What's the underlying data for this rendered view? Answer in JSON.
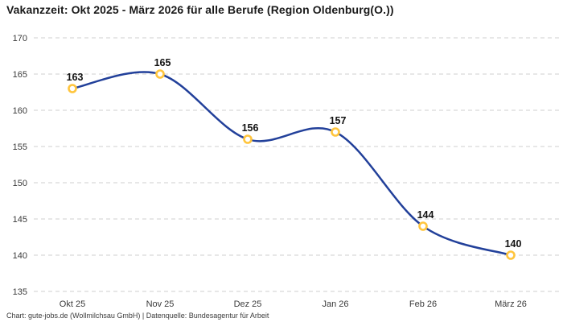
{
  "title": "Vakanzzeit: Okt 2025 - März 2026 für alle Berufe (Region Oldenburg(O.))",
  "footer": "Chart: gute-jobs.de (Wollmilchsau GmbH) | Datenquelle: Bundesagentur für Arbeit",
  "chart_data": {
    "type": "line",
    "title": "Vakanzzeit: Okt 2025 - März 2026 für alle Berufe (Region Oldenburg(O.))",
    "categories": [
      "Okt 25",
      "Nov 25",
      "Dez 25",
      "Jan 26",
      "Feb 26",
      "März 26"
    ],
    "values": [
      163,
      165,
      156,
      157,
      144,
      140
    ],
    "point_labels": [
      "163",
      "165",
      "156",
      "157",
      "144",
      "140"
    ],
    "xlabel": "",
    "ylabel": "",
    "ylim": [
      135,
      170
    ],
    "ytick_step": 5,
    "yticks": [
      135,
      140,
      145,
      150,
      155,
      160,
      165,
      170
    ],
    "grid": "horizontal-dashed",
    "legend_position": "none",
    "smooth": true,
    "colors": {
      "line": "#22409a",
      "marker_ring": "#ffc53d",
      "marker_fill": "#ffffff",
      "gridline": "#cfcfcf",
      "tick_text": "#3a3a3a",
      "value_text": "#111111"
    }
  }
}
